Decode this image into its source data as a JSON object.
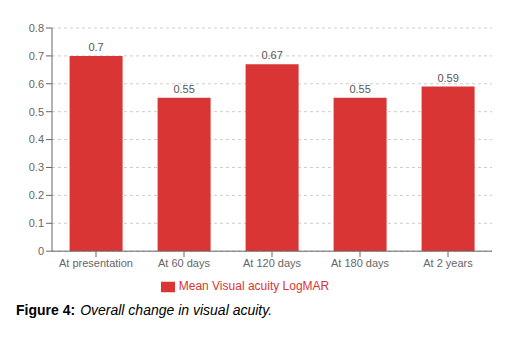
{
  "chart_data": {
    "type": "bar",
    "title": "Figure 4:",
    "subtitle": "Overall change in visual acuity.",
    "categories": [
      "At presentation",
      "At 60 days",
      "At 120 days",
      "At 180 days",
      "At 2 years"
    ],
    "series": [
      {
        "name": "Mean Visual acuity LogMAR",
        "color": "#D93535",
        "values": [
          0.7,
          0.55,
          0.67,
          0.55,
          0.59
        ]
      }
    ],
    "ylim": [
      0,
      0.8
    ],
    "yticks": [
      0,
      0.1,
      0.2,
      0.3,
      0.4,
      0.5,
      0.6,
      0.7,
      0.8
    ],
    "grid": true,
    "legend": "bottom",
    "data_labels": true
  }
}
